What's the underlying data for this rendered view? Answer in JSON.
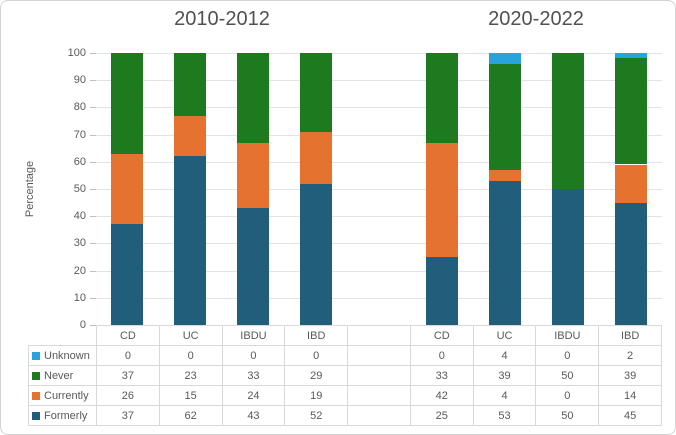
{
  "chart_data": {
    "type": "bar",
    "stacked": true,
    "ylabel": "Percentage",
    "ylim": [
      0,
      100
    ],
    "yticks": [
      0,
      10,
      20,
      30,
      40,
      50,
      60,
      70,
      80,
      90,
      100
    ],
    "grid": true,
    "data_table_shown": true,
    "legend_position": "left-of-data-table",
    "groups": [
      {
        "title": "2010-2012",
        "categories": [
          "CD",
          "UC",
          "IBDU",
          "IBD"
        ]
      },
      {
        "title": "2020-2022",
        "categories": [
          "CD",
          "UC",
          "IBDU",
          "IBD"
        ]
      }
    ],
    "series": [
      {
        "name": "Unknown",
        "color": "#29a3dc",
        "values": [
          [
            0,
            0,
            0,
            0
          ],
          [
            0,
            4,
            0,
            2
          ]
        ]
      },
      {
        "name": "Never",
        "color": "#1e7a1f",
        "values": [
          [
            37,
            23,
            33,
            29
          ],
          [
            33,
            39,
            50,
            39
          ]
        ]
      },
      {
        "name": "Currently",
        "color": "#e5732f",
        "values": [
          [
            26,
            15,
            24,
            19
          ],
          [
            42,
            4,
            0,
            14
          ]
        ]
      },
      {
        "name": "Formerly",
        "color": "#205e7c",
        "values": [
          [
            37,
            62,
            43,
            52
          ],
          [
            25,
            53,
            50,
            45
          ]
        ]
      }
    ],
    "stack_order_bottom_to_top": [
      "Formerly",
      "Currently",
      "Never",
      "Unknown"
    ]
  }
}
